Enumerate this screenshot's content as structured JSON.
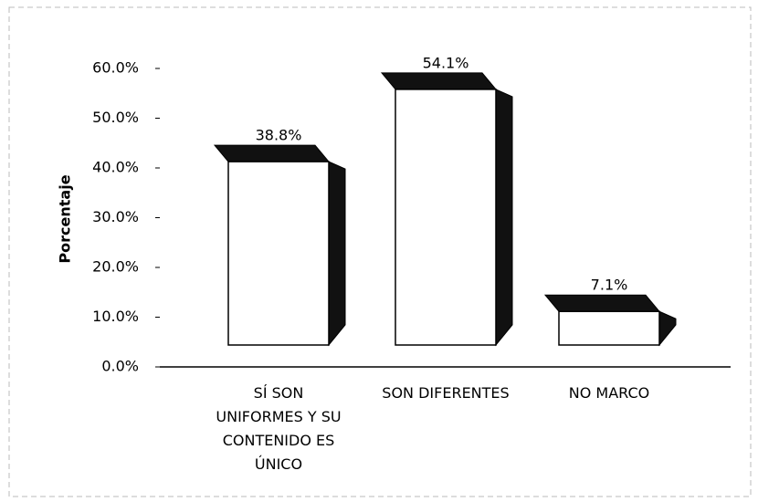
{
  "chart_data": {
    "type": "bar3d",
    "ylabel": "Porcentaje",
    "categories": [
      "SÍ SON UNIFORMES Y SU CONTENIDO ES ÚNICO",
      "SON DIFERENTES",
      "NO MARCO"
    ],
    "values": [
      38.8,
      54.1,
      7.1
    ],
    "value_labels": [
      "38.8%",
      "54.1%",
      "7.1%"
    ],
    "color": "#ffffff",
    "side_color": "#111111",
    "ylim": [
      0,
      60
    ],
    "yticks": [
      {
        "value": 0,
        "label": "0.0%"
      },
      {
        "value": 10,
        "label": "10.0%"
      },
      {
        "value": 20,
        "label": "20.0%"
      },
      {
        "value": 30,
        "label": "30.0%"
      },
      {
        "value": 40,
        "label": "40.0%"
      },
      {
        "value": 50,
        "label": "50.0%"
      },
      {
        "value": 60,
        "label": "60.0%"
      }
    ],
    "grid": false
  }
}
